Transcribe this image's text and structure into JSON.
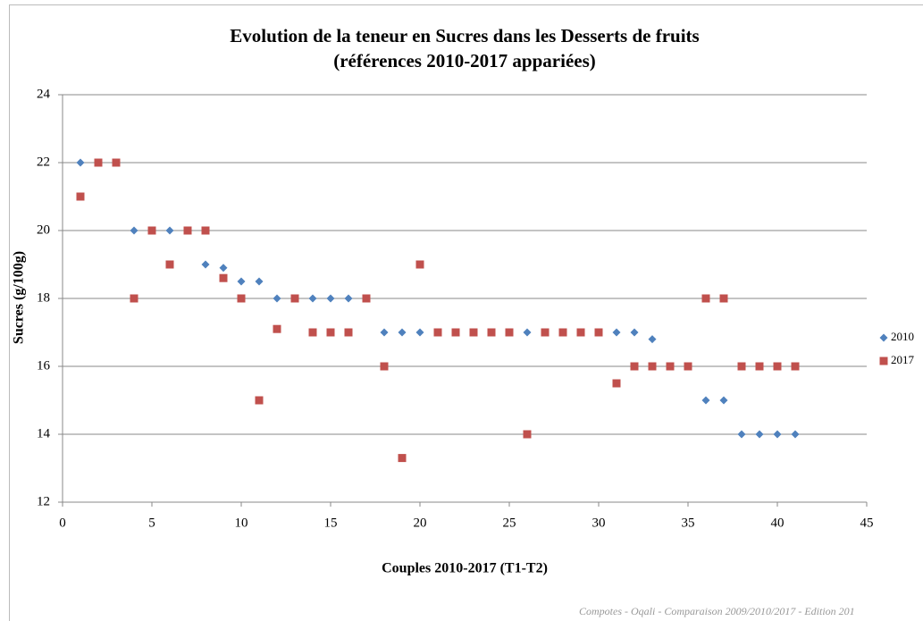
{
  "chart_data": {
    "type": "scatter",
    "title": [
      "Evolution de la teneur en Sucres dans les Desserts de fruits",
      "(références 2010-2017 appariées)"
    ],
    "x_label": "Couples 2010-2017 (T1-T2)",
    "y_label": "Sucres (g/100g)",
    "x": [
      1,
      2,
      3,
      4,
      5,
      6,
      7,
      8,
      9,
      10,
      11,
      12,
      13,
      14,
      15,
      16,
      17,
      18,
      19,
      20,
      21,
      22,
      23,
      24,
      25,
      26,
      27,
      28,
      29,
      30,
      31,
      32,
      33,
      34,
      35,
      36,
      37,
      38,
      39,
      40,
      41
    ],
    "series": [
      {
        "name": "2010",
        "color": "#4f81bd",
        "marker": "diamond",
        "values": [
          22,
          22,
          22,
          20,
          20,
          20,
          20,
          19,
          18.9,
          18.5,
          18.5,
          18,
          18,
          18,
          18,
          18,
          18,
          17,
          17,
          17,
          17,
          17,
          17,
          17,
          17,
          17,
          17,
          17,
          17,
          17,
          17,
          17,
          16.8,
          16,
          16,
          15,
          15,
          14,
          14,
          14,
          14
        ]
      },
      {
        "name": "2017",
        "color": "#c0504d",
        "marker": "square",
        "values": [
          21,
          22,
          22,
          18,
          20,
          19,
          20,
          20,
          18.6,
          18,
          15,
          17.1,
          18,
          17,
          17,
          17,
          18,
          16,
          13.3,
          19,
          17,
          17,
          17,
          17,
          17,
          14,
          17,
          17,
          17,
          17,
          15.5,
          16,
          16,
          16,
          16,
          18,
          18,
          16,
          16,
          16,
          16
        ]
      }
    ],
    "xlim": [
      0,
      45
    ],
    "xticks": [
      0,
      5,
      10,
      15,
      20,
      25,
      30,
      35,
      40,
      45
    ],
    "ylim": [
      12,
      24
    ],
    "yticks": [
      12,
      14,
      16,
      18,
      20,
      22,
      24
    ],
    "grid": true,
    "legend": "right",
    "footer": "Compotes - Oqali - Comparaison 2009/2010/2017  - Edition 201"
  }
}
